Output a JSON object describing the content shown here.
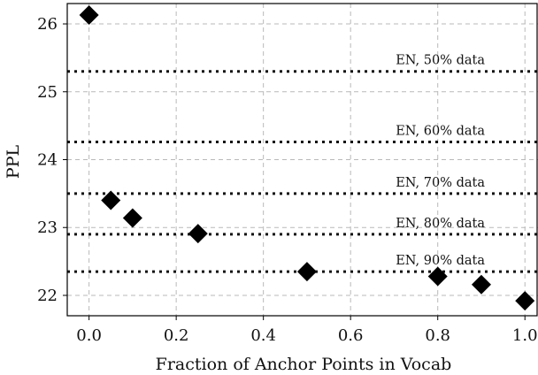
{
  "chart_data": {
    "type": "scatter",
    "title": "",
    "xlabel": "Fraction of Anchor Points in Vocab",
    "ylabel": "PPL",
    "xlim": [
      -0.05,
      1.03
    ],
    "ylim": [
      21.7,
      26.3
    ],
    "xticks": [
      0.0,
      0.2,
      0.4,
      0.6,
      0.8,
      1.0
    ],
    "xtick_labels": [
      "0.0",
      "0.2",
      "0.4",
      "0.6",
      "0.8",
      "1.0"
    ],
    "yticks": [
      22,
      23,
      24,
      25,
      26
    ],
    "ytick_labels": [
      "22",
      "23",
      "24",
      "25",
      "26"
    ],
    "grid": true,
    "marker": "diamond",
    "series": [
      {
        "x": [
          0.0,
          0.05,
          0.1,
          0.25,
          0.5,
          0.8,
          0.9,
          1.0
        ],
        "y": [
          26.13,
          23.4,
          23.14,
          22.91,
          22.35,
          22.28,
          22.16,
          21.92
        ]
      }
    ],
    "reference_lines": [
      {
        "label": "EN, 50% data",
        "y": 25.3
      },
      {
        "label": "EN, 60% data",
        "y": 24.26
      },
      {
        "label": "EN, 70% data",
        "y": 23.5
      },
      {
        "label": "EN, 80% data",
        "y": 22.9
      },
      {
        "label": "EN, 90% data",
        "y": 22.35
      }
    ]
  }
}
